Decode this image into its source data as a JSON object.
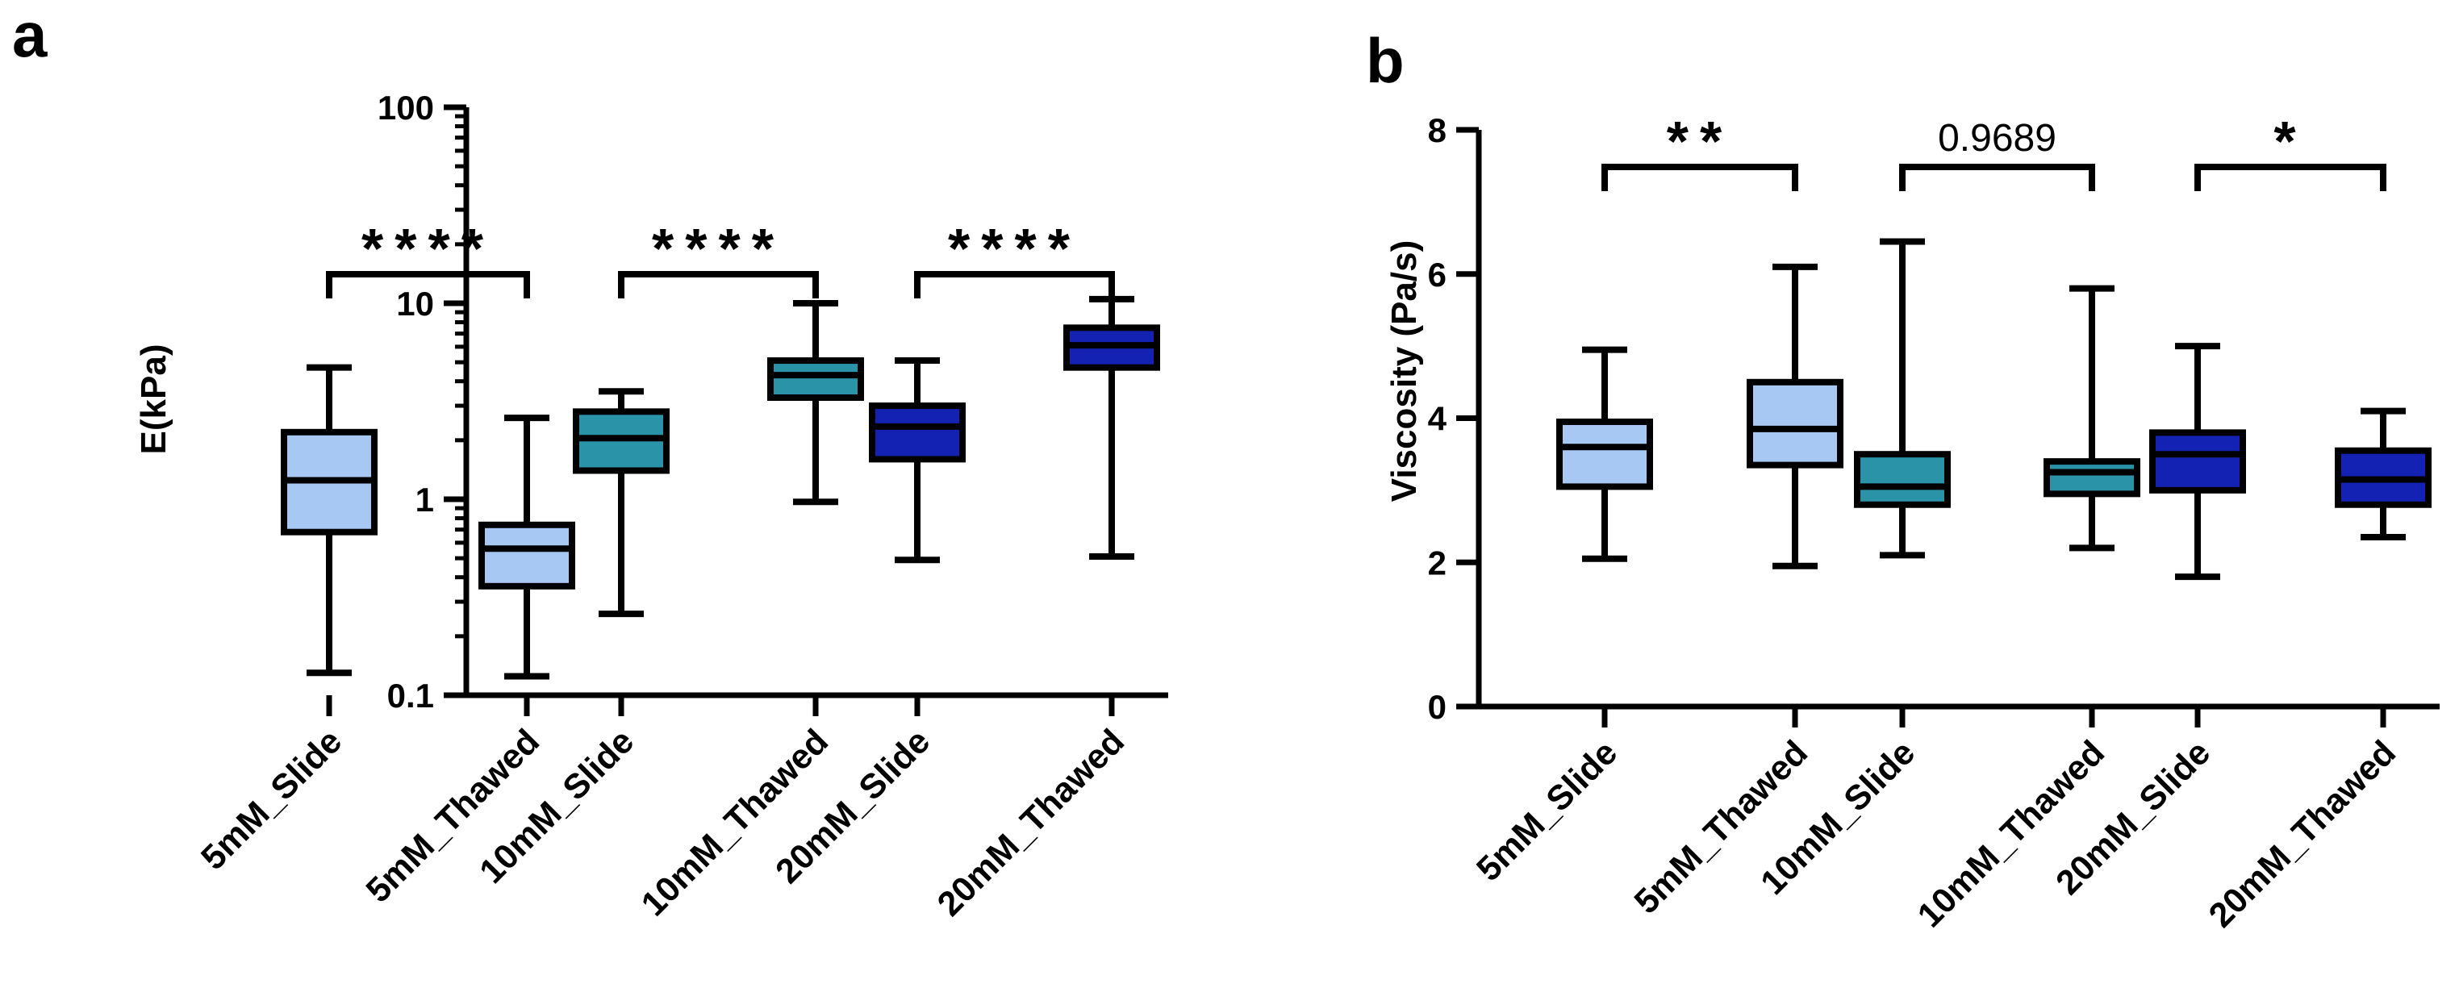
{
  "chart_data": [
    {
      "panel": "a",
      "type": "boxplot",
      "title": "",
      "xlabel": "",
      "ylabel": "E(kPa)",
      "yscale": "log",
      "ylim": [
        0.1,
        100
      ],
      "yticks": [
        0.1,
        1,
        10,
        100
      ],
      "ytick_labels": [
        "0.1",
        "1",
        "10",
        "100"
      ],
      "categories": [
        "5mM_Slide",
        "5mM_Thawed",
        "10mM_Slide",
        "10mM_Thawed",
        "20mM_Slide",
        "20mM_Thawed"
      ],
      "colors": [
        "#a8c8f4",
        "#a8c8f4",
        "#2a93a8",
        "#2a93a8",
        "#1322b2",
        "#1322b2"
      ],
      "boxes": [
        {
          "min": 0.13,
          "q1": 0.68,
          "median": 1.25,
          "q3": 2.2,
          "max": 4.7
        },
        {
          "min": 0.125,
          "q1": 0.36,
          "median": 0.56,
          "q3": 0.74,
          "max": 2.6
        },
        {
          "min": 0.26,
          "q1": 1.4,
          "median": 2.05,
          "q3": 2.8,
          "max": 3.55
        },
        {
          "min": 0.97,
          "q1": 3.3,
          "median": 4.3,
          "q3": 5.1,
          "max": 10.0
        },
        {
          "min": 0.49,
          "q1": 1.6,
          "median": 2.35,
          "q3": 3.0,
          "max": 5.1
        },
        {
          "min": 0.51,
          "q1": 4.7,
          "median": 6.1,
          "q3": 7.5,
          "max": 10.5
        }
      ],
      "comparisons": [
        {
          "pair": [
            0,
            1
          ],
          "label": "****",
          "level": 35
        },
        {
          "pair": [
            2,
            3
          ],
          "label": "****",
          "level": 35
        },
        {
          "pair": [
            4,
            5
          ],
          "label": "****",
          "level": 35
        }
      ]
    },
    {
      "panel": "b",
      "type": "boxplot",
      "title": "",
      "xlabel": "",
      "ylabel": "Viscosity (Pa/s)",
      "yscale": "linear",
      "ylim": [
        0,
        8
      ],
      "yticks": [
        0,
        2,
        4,
        6,
        8
      ],
      "ytick_labels": [
        "0",
        "2",
        "4",
        "6",
        "8"
      ],
      "categories": [
        "5mM_Slide",
        "5mM_Thawed",
        "10mM_Slide",
        "10mM_Thawed",
        "20mM_Slide",
        "20mM_Thawed"
      ],
      "colors": [
        "#a8c8f4",
        "#a8c8f4",
        "#2a93a8",
        "#2a93a8",
        "#1322b2",
        "#1322b2"
      ],
      "boxes": [
        {
          "min": 2.05,
          "q1": 3.05,
          "median": 3.6,
          "q3": 3.95,
          "max": 4.95
        },
        {
          "min": 1.95,
          "q1": 3.35,
          "median": 3.85,
          "q3": 4.5,
          "max": 6.1
        },
        {
          "min": 2.1,
          "q1": 2.8,
          "median": 3.05,
          "q3": 3.5,
          "max": 6.45
        },
        {
          "min": 2.2,
          "q1": 2.95,
          "median": 3.25,
          "q3": 3.4,
          "max": 5.8
        },
        {
          "min": 1.8,
          "q1": 3.0,
          "median": 3.5,
          "q3": 3.8,
          "max": 5.0
        },
        {
          "min": 2.35,
          "q1": 2.8,
          "median": 3.15,
          "q3": 3.55,
          "max": 4.1
        }
      ],
      "comparisons": [
        {
          "pair": [
            0,
            1
          ],
          "label": "**",
          "level": 8.3
        },
        {
          "pair": [
            2,
            3
          ],
          "label": "0.9689",
          "level": 8.3
        },
        {
          "pair": [
            4,
            5
          ],
          "label": "*",
          "level": 8.3
        }
      ]
    }
  ]
}
